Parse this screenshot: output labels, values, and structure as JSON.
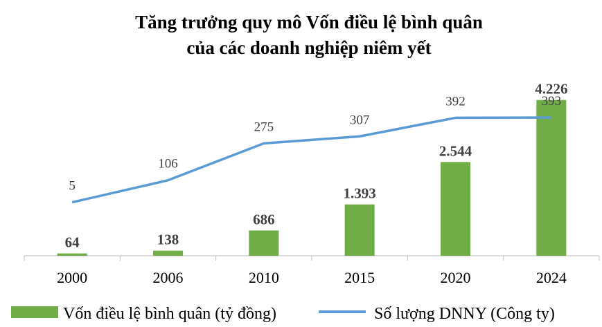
{
  "chart_data": {
    "type": "bar",
    "title_lines": [
      "Tăng trưởng quy mô Vốn điều lệ bình quân",
      "của các doanh nghiệp niêm yết"
    ],
    "categories": [
      "2000",
      "2006",
      "2010",
      "2015",
      "2020",
      "2024"
    ],
    "series": [
      {
        "name": "Vốn điều lệ bình quân (tỷ đồng)",
        "type": "bar",
        "color": "#70ad47",
        "values": [
          64,
          138,
          686,
          1393,
          2544,
          4226
        ],
        "labels": [
          "64",
          "138",
          "686",
          "1.393",
          "2.544",
          "4.226"
        ]
      },
      {
        "name": "Số lượng DNNY (Công ty)",
        "type": "line",
        "color": "#5b9bd5",
        "values": [
          5,
          106,
          275,
          307,
          392,
          393
        ],
        "labels": [
          "5",
          "106",
          "275",
          "307",
          "392",
          "393"
        ]
      }
    ],
    "bar_axis_range": [
      0,
      4500
    ],
    "line_axis_range": [
      -240,
      520
    ],
    "grid": false,
    "legend_position": "bottom"
  }
}
